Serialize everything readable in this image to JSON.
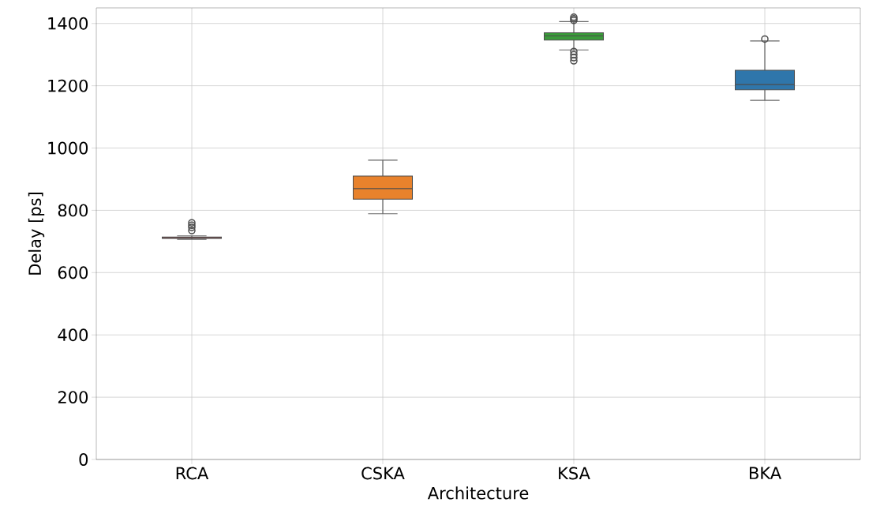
{
  "chart_data": {
    "type": "box",
    "xlabel": "Architecture",
    "ylabel": "Delay [ps]",
    "categories": [
      "RCA",
      "CSKA",
      "KSA",
      "BKA"
    ],
    "colors": [
      "#d62728",
      "#e8822c",
      "#3a9a3a",
      "#2f76ab"
    ],
    "boxes": [
      {
        "low": 707,
        "q1": 710,
        "median": 712,
        "q3": 714,
        "high": 718,
        "outliers": [
          735,
          745,
          752,
          760
        ]
      },
      {
        "low": 789,
        "q1": 836,
        "median": 870,
        "q3": 910,
        "high": 961
      },
      {
        "low": 1315,
        "q1": 1347,
        "median": 1360,
        "q3": 1370,
        "high": 1406,
        "outliers": [
          1410,
          1415,
          1420,
          1280,
          1290,
          1300,
          1310
        ]
      },
      {
        "low": 1153,
        "q1": 1187,
        "median": 1204,
        "q3": 1250,
        "high": 1344,
        "outliers": [
          1350
        ]
      }
    ],
    "ylim": [
      0,
      1450
    ],
    "yticks": [
      0,
      200,
      400,
      600,
      800,
      1000,
      1200,
      1400
    ],
    "grid": true,
    "marker": "circle"
  }
}
